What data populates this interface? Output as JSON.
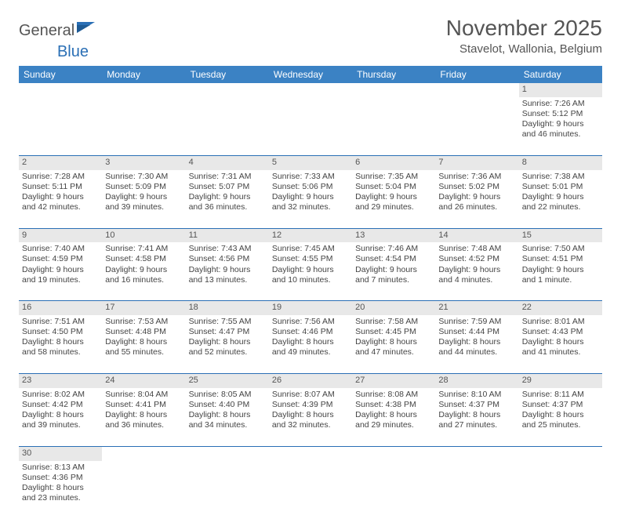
{
  "logo": {
    "part1": "General",
    "part2": "Blue"
  },
  "title": "November 2025",
  "location": "Stavelot, Wallonia, Belgium",
  "weekdays": [
    "Sunday",
    "Monday",
    "Tuesday",
    "Wednesday",
    "Thursday",
    "Friday",
    "Saturday"
  ],
  "colors": {
    "header_bg": "#3b82c4",
    "rule": "#2a6fb5",
    "daynum_bg": "#e8e8e8"
  },
  "weeks": [
    {
      "days": [
        null,
        null,
        null,
        null,
        null,
        null,
        {
          "n": "1",
          "sr": "Sunrise: 7:26 AM",
          "ss": "Sunset: 5:12 PM",
          "d1": "Daylight: 9 hours",
          "d2": "and 46 minutes."
        }
      ]
    },
    {
      "days": [
        {
          "n": "2",
          "sr": "Sunrise: 7:28 AM",
          "ss": "Sunset: 5:11 PM",
          "d1": "Daylight: 9 hours",
          "d2": "and 42 minutes."
        },
        {
          "n": "3",
          "sr": "Sunrise: 7:30 AM",
          "ss": "Sunset: 5:09 PM",
          "d1": "Daylight: 9 hours",
          "d2": "and 39 minutes."
        },
        {
          "n": "4",
          "sr": "Sunrise: 7:31 AM",
          "ss": "Sunset: 5:07 PM",
          "d1": "Daylight: 9 hours",
          "d2": "and 36 minutes."
        },
        {
          "n": "5",
          "sr": "Sunrise: 7:33 AM",
          "ss": "Sunset: 5:06 PM",
          "d1": "Daylight: 9 hours",
          "d2": "and 32 minutes."
        },
        {
          "n": "6",
          "sr": "Sunrise: 7:35 AM",
          "ss": "Sunset: 5:04 PM",
          "d1": "Daylight: 9 hours",
          "d2": "and 29 minutes."
        },
        {
          "n": "7",
          "sr": "Sunrise: 7:36 AM",
          "ss": "Sunset: 5:02 PM",
          "d1": "Daylight: 9 hours",
          "d2": "and 26 minutes."
        },
        {
          "n": "8",
          "sr": "Sunrise: 7:38 AM",
          "ss": "Sunset: 5:01 PM",
          "d1": "Daylight: 9 hours",
          "d2": "and 22 minutes."
        }
      ]
    },
    {
      "days": [
        {
          "n": "9",
          "sr": "Sunrise: 7:40 AM",
          "ss": "Sunset: 4:59 PM",
          "d1": "Daylight: 9 hours",
          "d2": "and 19 minutes."
        },
        {
          "n": "10",
          "sr": "Sunrise: 7:41 AM",
          "ss": "Sunset: 4:58 PM",
          "d1": "Daylight: 9 hours",
          "d2": "and 16 minutes."
        },
        {
          "n": "11",
          "sr": "Sunrise: 7:43 AM",
          "ss": "Sunset: 4:56 PM",
          "d1": "Daylight: 9 hours",
          "d2": "and 13 minutes."
        },
        {
          "n": "12",
          "sr": "Sunrise: 7:45 AM",
          "ss": "Sunset: 4:55 PM",
          "d1": "Daylight: 9 hours",
          "d2": "and 10 minutes."
        },
        {
          "n": "13",
          "sr": "Sunrise: 7:46 AM",
          "ss": "Sunset: 4:54 PM",
          "d1": "Daylight: 9 hours",
          "d2": "and 7 minutes."
        },
        {
          "n": "14",
          "sr": "Sunrise: 7:48 AM",
          "ss": "Sunset: 4:52 PM",
          "d1": "Daylight: 9 hours",
          "d2": "and 4 minutes."
        },
        {
          "n": "15",
          "sr": "Sunrise: 7:50 AM",
          "ss": "Sunset: 4:51 PM",
          "d1": "Daylight: 9 hours",
          "d2": "and 1 minute."
        }
      ]
    },
    {
      "days": [
        {
          "n": "16",
          "sr": "Sunrise: 7:51 AM",
          "ss": "Sunset: 4:50 PM",
          "d1": "Daylight: 8 hours",
          "d2": "and 58 minutes."
        },
        {
          "n": "17",
          "sr": "Sunrise: 7:53 AM",
          "ss": "Sunset: 4:48 PM",
          "d1": "Daylight: 8 hours",
          "d2": "and 55 minutes."
        },
        {
          "n": "18",
          "sr": "Sunrise: 7:55 AM",
          "ss": "Sunset: 4:47 PM",
          "d1": "Daylight: 8 hours",
          "d2": "and 52 minutes."
        },
        {
          "n": "19",
          "sr": "Sunrise: 7:56 AM",
          "ss": "Sunset: 4:46 PM",
          "d1": "Daylight: 8 hours",
          "d2": "and 49 minutes."
        },
        {
          "n": "20",
          "sr": "Sunrise: 7:58 AM",
          "ss": "Sunset: 4:45 PM",
          "d1": "Daylight: 8 hours",
          "d2": "and 47 minutes."
        },
        {
          "n": "21",
          "sr": "Sunrise: 7:59 AM",
          "ss": "Sunset: 4:44 PM",
          "d1": "Daylight: 8 hours",
          "d2": "and 44 minutes."
        },
        {
          "n": "22",
          "sr": "Sunrise: 8:01 AM",
          "ss": "Sunset: 4:43 PM",
          "d1": "Daylight: 8 hours",
          "d2": "and 41 minutes."
        }
      ]
    },
    {
      "days": [
        {
          "n": "23",
          "sr": "Sunrise: 8:02 AM",
          "ss": "Sunset: 4:42 PM",
          "d1": "Daylight: 8 hours",
          "d2": "and 39 minutes."
        },
        {
          "n": "24",
          "sr": "Sunrise: 8:04 AM",
          "ss": "Sunset: 4:41 PM",
          "d1": "Daylight: 8 hours",
          "d2": "and 36 minutes."
        },
        {
          "n": "25",
          "sr": "Sunrise: 8:05 AM",
          "ss": "Sunset: 4:40 PM",
          "d1": "Daylight: 8 hours",
          "d2": "and 34 minutes."
        },
        {
          "n": "26",
          "sr": "Sunrise: 8:07 AM",
          "ss": "Sunset: 4:39 PM",
          "d1": "Daylight: 8 hours",
          "d2": "and 32 minutes."
        },
        {
          "n": "27",
          "sr": "Sunrise: 8:08 AM",
          "ss": "Sunset: 4:38 PM",
          "d1": "Daylight: 8 hours",
          "d2": "and 29 minutes."
        },
        {
          "n": "28",
          "sr": "Sunrise: 8:10 AM",
          "ss": "Sunset: 4:37 PM",
          "d1": "Daylight: 8 hours",
          "d2": "and 27 minutes."
        },
        {
          "n": "29",
          "sr": "Sunrise: 8:11 AM",
          "ss": "Sunset: 4:37 PM",
          "d1": "Daylight: 8 hours",
          "d2": "and 25 minutes."
        }
      ]
    },
    {
      "days": [
        {
          "n": "30",
          "sr": "Sunrise: 8:13 AM",
          "ss": "Sunset: 4:36 PM",
          "d1": "Daylight: 8 hours",
          "d2": "and 23 minutes."
        },
        null,
        null,
        null,
        null,
        null,
        null
      ]
    }
  ]
}
